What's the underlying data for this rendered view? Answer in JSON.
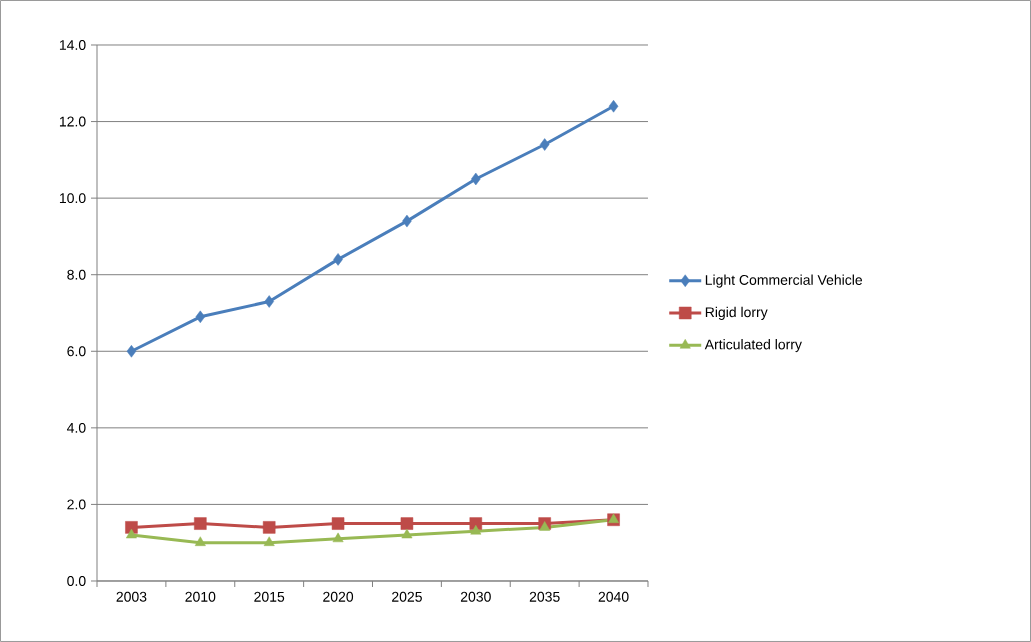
{
  "chart_data": {
    "type": "line",
    "categories": [
      "2003",
      "2010",
      "2015",
      "2020",
      "2025",
      "2030",
      "2035",
      "2040"
    ],
    "series": [
      {
        "name": "Light Commercial Vehicle",
        "color": "#4a7ebb",
        "marker": "diamond",
        "values": [
          6.0,
          6.9,
          7.3,
          8.4,
          9.4,
          10.5,
          11.4,
          12.4
        ]
      },
      {
        "name": "Rigid lorry",
        "color": "#be4b48",
        "marker": "square",
        "values": [
          1.4,
          1.5,
          1.4,
          1.5,
          1.5,
          1.5,
          1.5,
          1.6
        ]
      },
      {
        "name": "Articulated lorry",
        "color": "#98b954",
        "marker": "triangle",
        "values": [
          1.2,
          1.0,
          1.0,
          1.1,
          1.2,
          1.3,
          1.4,
          1.6
        ]
      }
    ],
    "ylim": [
      0,
      14
    ],
    "yticks": [
      {
        "value": 0,
        "label": "0.0"
      },
      {
        "value": 2,
        "label": "2.0"
      },
      {
        "value": 4,
        "label": "4.0"
      },
      {
        "value": 6,
        "label": "6.0"
      },
      {
        "value": 8,
        "label": "8.0"
      },
      {
        "value": 10,
        "label": "10.0"
      },
      {
        "value": 12,
        "label": "12.0"
      },
      {
        "value": 14,
        "label": "14.0"
      }
    ],
    "grid": "y",
    "legend": "right",
    "line_style": "solid"
  }
}
